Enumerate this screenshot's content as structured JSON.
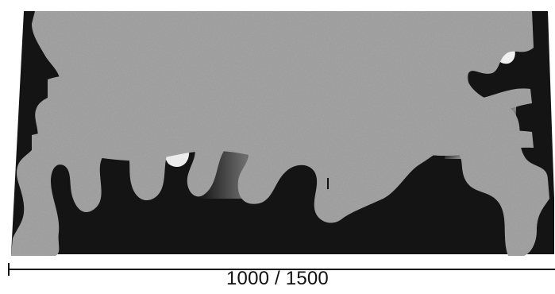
{
  "figure": {
    "scale_label": "1000 / 1500"
  },
  "colors": {
    "material_gray": "#a6a6a6",
    "void_black": "#141414",
    "void_highlight": "#d8d8d8",
    "background": "#ffffff",
    "scale_line": "#111111"
  }
}
